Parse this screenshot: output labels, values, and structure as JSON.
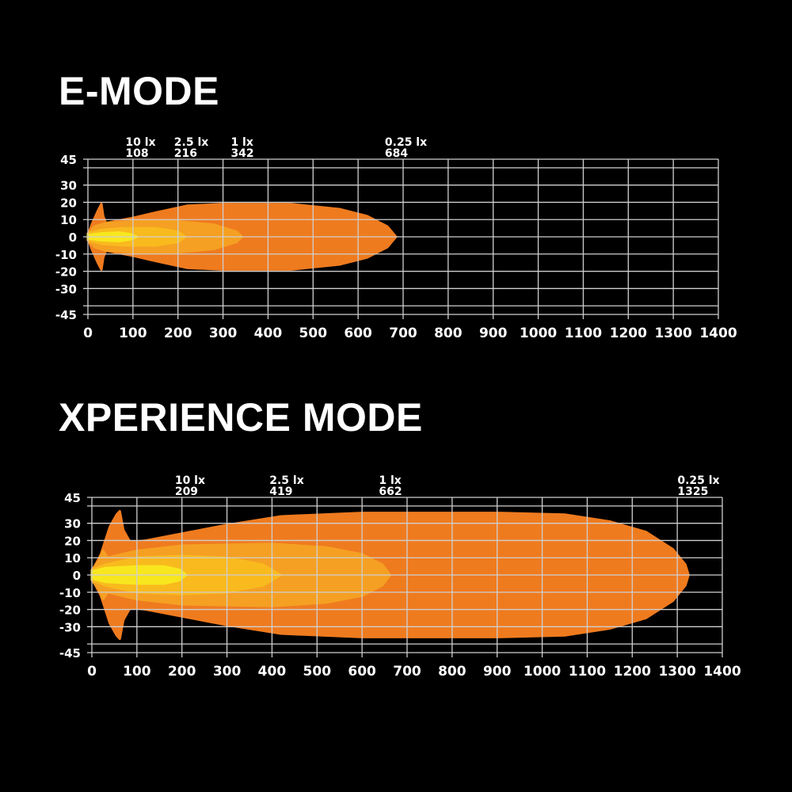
{
  "chart_data": [
    {
      "type": "area",
      "title": "E-MODE",
      "xlim": [
        0,
        1400
      ],
      "ylim": [
        -45,
        45
      ],
      "xticks": [
        0,
        100,
        200,
        300,
        400,
        500,
        600,
        700,
        800,
        900,
        1000,
        1100,
        1200,
        1300,
        1400
      ],
      "yticks": [
        45,
        30,
        20,
        10,
        0,
        -10,
        -20,
        -30,
        -45
      ],
      "grid": true,
      "annotations": [
        {
          "lux": "10 lx",
          "distance": 108
        },
        {
          "lux": "2.5 lx",
          "distance": 216
        },
        {
          "lux": "1 lx",
          "distance": 342
        },
        {
          "lux": "0.25 lx",
          "distance": 684
        }
      ],
      "contours": [
        {
          "level": "0.25 lx",
          "color": "#EF7B1F",
          "profile": [
            [
              0,
              1
            ],
            [
              10,
              8
            ],
            [
              22,
              15
            ],
            [
              30,
              19
            ],
            [
              34,
              12
            ],
            [
              40,
              8
            ],
            [
              100,
              11
            ],
            [
              150,
              14
            ],
            [
              220,
              18
            ],
            [
              300,
              19
            ],
            [
              450,
              19
            ],
            [
              560,
              16
            ],
            [
              620,
              12
            ],
            [
              665,
              6
            ],
            [
              684,
              0
            ]
          ]
        },
        {
          "level": "1 lx",
          "color": "#F5A023",
          "profile": [
            [
              0,
              2
            ],
            [
              15,
              6
            ],
            [
              40,
              8
            ],
            [
              100,
              9
            ],
            [
              200,
              9
            ],
            [
              280,
              7
            ],
            [
              330,
              3
            ],
            [
              342,
              0
            ]
          ]
        },
        {
          "level": "2.5 lx",
          "color": "#F9BA1E",
          "profile": [
            [
              0,
              2
            ],
            [
              30,
              4
            ],
            [
              80,
              5
            ],
            [
              150,
              5
            ],
            [
              200,
              3
            ],
            [
              216,
              0
            ]
          ]
        },
        {
          "level": "10 lx",
          "color": "#F8E71E",
          "profile": [
            [
              0,
              1
            ],
            [
              30,
              2
            ],
            [
              70,
              2.5
            ],
            [
              95,
              1.5
            ],
            [
              108,
              0
            ]
          ]
        }
      ]
    },
    {
      "type": "area",
      "title": "XPERIENCE MODE",
      "xlim": [
        0,
        1400
      ],
      "ylim": [
        -45,
        45
      ],
      "xticks": [
        0,
        100,
        200,
        300,
        400,
        500,
        600,
        700,
        800,
        900,
        1000,
        1100,
        1200,
        1300,
        1400
      ],
      "yticks": [
        45,
        30,
        20,
        10,
        0,
        -10,
        -20,
        -30,
        -45
      ],
      "grid": true,
      "annotations": [
        {
          "lux": "10 lx",
          "distance": 209
        },
        {
          "lux": "2.5 lx",
          "distance": 419
        },
        {
          "lux": "1 lx",
          "distance": 662
        },
        {
          "lux": "0.25 lx",
          "distance": 1325
        }
      ],
      "contours": [
        {
          "level": "0.25 lx",
          "color": "#EF7B1F",
          "profile": [
            [
              0,
              2
            ],
            [
              20,
              12
            ],
            [
              40,
              28
            ],
            [
              55,
              35
            ],
            [
              62,
              37
            ],
            [
              70,
              26
            ],
            [
              85,
              19
            ],
            [
              120,
              20
            ],
            [
              200,
              24
            ],
            [
              300,
              29
            ],
            [
              420,
              34
            ],
            [
              600,
              36
            ],
            [
              900,
              36
            ],
            [
              1050,
              35
            ],
            [
              1150,
              31
            ],
            [
              1230,
              25
            ],
            [
              1290,
              15
            ],
            [
              1318,
              6
            ],
            [
              1325,
              0
            ]
          ]
        },
        {
          "level": "1 lx",
          "color": "#F5A023",
          "profile": [
            [
              0,
              3
            ],
            [
              15,
              8
            ],
            [
              25,
              14
            ],
            [
              35,
              10
            ],
            [
              100,
              14
            ],
            [
              200,
              17
            ],
            [
              400,
              18
            ],
            [
              520,
              16
            ],
            [
              600,
              12
            ],
            [
              645,
              6
            ],
            [
              662,
              0
            ]
          ]
        },
        {
          "level": "2.5 lx",
          "color": "#F9BA1E",
          "profile": [
            [
              0,
              3
            ],
            [
              30,
              6
            ],
            [
              100,
              10
            ],
            [
              200,
              11
            ],
            [
              300,
              10
            ],
            [
              380,
              6
            ],
            [
              419,
              0
            ]
          ]
        },
        {
          "level": "10 lx",
          "color": "#F8E71E",
          "profile": [
            [
              0,
              2
            ],
            [
              30,
              4
            ],
            [
              100,
              5
            ],
            [
              160,
              5
            ],
            [
              195,
              3
            ],
            [
              209,
              0
            ]
          ]
        }
      ]
    }
  ]
}
